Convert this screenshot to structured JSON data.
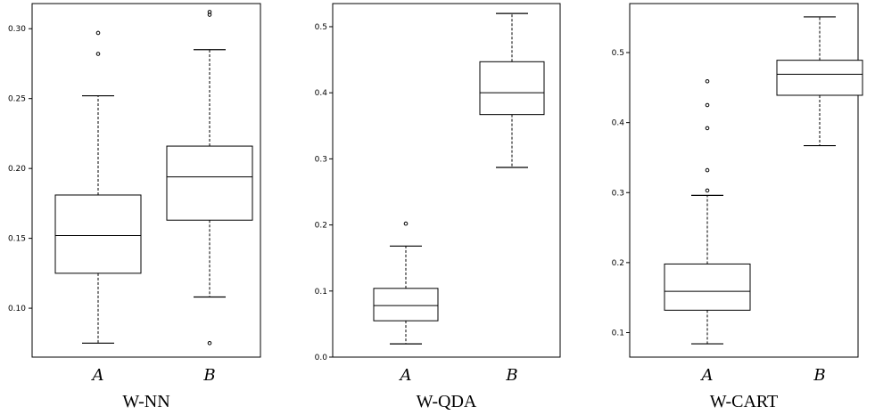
{
  "chart_data": [
    {
      "type": "boxplot",
      "title": "W-NN",
      "categories": [
        "A",
        "B"
      ],
      "ylim": [
        0.065,
        0.318
      ],
      "yticks": [
        0.1,
        0.15,
        0.2,
        0.25,
        0.3
      ],
      "ytick_labels": [
        "0.10",
        "0.15",
        "0.20",
        "0.25",
        "0.30"
      ],
      "boxes": [
        {
          "category": "A",
          "whisker_low": 0.075,
          "q1": 0.125,
          "median": 0.152,
          "q3": 0.181,
          "whisker_high": 0.252,
          "outliers": [
            0.282,
            0.297
          ]
        },
        {
          "category": "B",
          "whisker_low": 0.108,
          "q1": 0.163,
          "median": 0.194,
          "q3": 0.216,
          "whisker_high": 0.285,
          "outliers": [
            0.075,
            0.31,
            0.312
          ]
        }
      ]
    },
    {
      "type": "boxplot",
      "title": "W-QDA",
      "categories": [
        "A",
        "B"
      ],
      "ylim": [
        0.0,
        0.535
      ],
      "yticks": [
        0.0,
        0.1,
        0.2,
        0.3,
        0.4,
        0.5
      ],
      "ytick_labels": [
        "0.0",
        "0.1",
        "0.2",
        "0.3",
        "0.4",
        "0.5"
      ],
      "boxes": [
        {
          "category": "A",
          "whisker_low": 0.02,
          "q1": 0.055,
          "median": 0.078,
          "q3": 0.104,
          "whisker_high": 0.168,
          "outliers": [
            0.202
          ]
        },
        {
          "category": "B",
          "whisker_low": 0.287,
          "q1": 0.367,
          "median": 0.4,
          "q3": 0.447,
          "whisker_high": 0.52,
          "outliers": []
        }
      ]
    },
    {
      "type": "boxplot",
      "title": "W-CART",
      "categories": [
        "A",
        "B"
      ],
      "ylim": [
        0.065,
        0.57
      ],
      "yticks": [
        0.1,
        0.2,
        0.3,
        0.4,
        0.5
      ],
      "ytick_labels": [
        "0.1",
        "0.2",
        "0.3",
        "0.4",
        "0.5"
      ],
      "boxes": [
        {
          "category": "A",
          "whisker_low": 0.084,
          "q1": 0.132,
          "median": 0.159,
          "q3": 0.198,
          "whisker_high": 0.296,
          "outliers": [
            0.303,
            0.332,
            0.392,
            0.425,
            0.459
          ]
        },
        {
          "category": "B",
          "whisker_low": 0.367,
          "q1": 0.439,
          "median": 0.469,
          "q3": 0.489,
          "whisker_high": 0.551,
          "outliers": []
        }
      ]
    }
  ]
}
